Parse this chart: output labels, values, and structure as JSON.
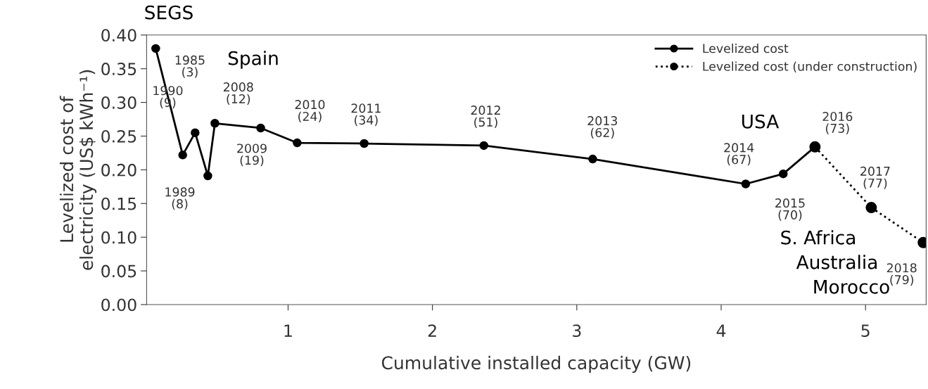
{
  "chart_data": {
    "type": "line",
    "xlabel": "Cumulative installed capacity (GW)",
    "ylabel": "Levelized cost of\nelectricity (US$ kWh⁻¹)",
    "xlim": [
      0.02,
      5.42
    ],
    "xticks": [
      1,
      2,
      3,
      4,
      5
    ],
    "ylim": [
      0,
      0.4
    ],
    "yticks": [
      {
        "value": 0,
        "label": "0.00"
      },
      {
        "value": 0.05,
        "label": "0.05"
      },
      {
        "value": 0.1,
        "label": "0.10"
      },
      {
        "value": 0.15,
        "label": "0.15"
      },
      {
        "value": 0.2,
        "label": "0.20"
      },
      {
        "value": 0.25,
        "label": "0.25"
      },
      {
        "value": 0.3,
        "label": "0.30"
      },
      {
        "value": 0.35,
        "label": "0.35"
      },
      {
        "value": 0.4,
        "label": "0.40"
      }
    ],
    "grid": false,
    "legend": "top right",
    "marker": "circle",
    "series": [
      {
        "name": "Levelized cost",
        "color": "#000000",
        "line_style": "solid",
        "x": [
          0.083,
          0.27,
          0.356,
          0.444,
          0.493,
          0.81,
          1.063,
          1.527,
          2.356,
          3.11,
          4.17,
          4.43,
          4.65
        ],
        "values": [
          0.38,
          0.222,
          0.255,
          0.191,
          0.269,
          0.262,
          0.24,
          0.239,
          0.236,
          0.216,
          0.179,
          0.194,
          0.234
        ]
      },
      {
        "name": "Levelized cost (under construction)",
        "color": "#000000",
        "line_style": "dotted",
        "x": [
          4.65,
          5.04,
          5.4
        ],
        "values": [
          0.234,
          0.144,
          0.092
        ]
      }
    ],
    "annotations": [
      {
        "text": "1985\n(3)",
        "x": 0.083,
        "y": 0.38
      },
      {
        "text": "1989\n(8)",
        "x": 0.27,
        "y": 0.222
      },
      {
        "text": "1990\n(9)",
        "x": 0.356,
        "y": 0.255
      },
      {
        "text": "2008\n(12)",
        "x": 0.493,
        "y": 0.269
      },
      {
        "text": "2009\n(19)",
        "x": 0.81,
        "y": 0.262
      },
      {
        "text": "2010\n(24)",
        "x": 1.063,
        "y": 0.24
      },
      {
        "text": "2011\n(34)",
        "x": 1.527,
        "y": 0.239
      },
      {
        "text": "2012\n(51)",
        "x": 2.356,
        "y": 0.236
      },
      {
        "text": "2013\n(62)",
        "x": 3.11,
        "y": 0.216
      },
      {
        "text": "2014\n(67)",
        "x": 4.17,
        "y": 0.179
      },
      {
        "text": "2015\n(70)",
        "x": 4.43,
        "y": 0.194
      },
      {
        "text": "2016\n(73)",
        "x": 4.65,
        "y": 0.234
      },
      {
        "text": "2017\n(77)",
        "x": 5.04,
        "y": 0.144
      },
      {
        "text": "2018\n(79)",
        "x": 5.4,
        "y": 0.092
      },
      "SEGS",
      "Spain",
      "USA",
      "S. Africa",
      "Australia",
      "Morocco"
    ]
  }
}
